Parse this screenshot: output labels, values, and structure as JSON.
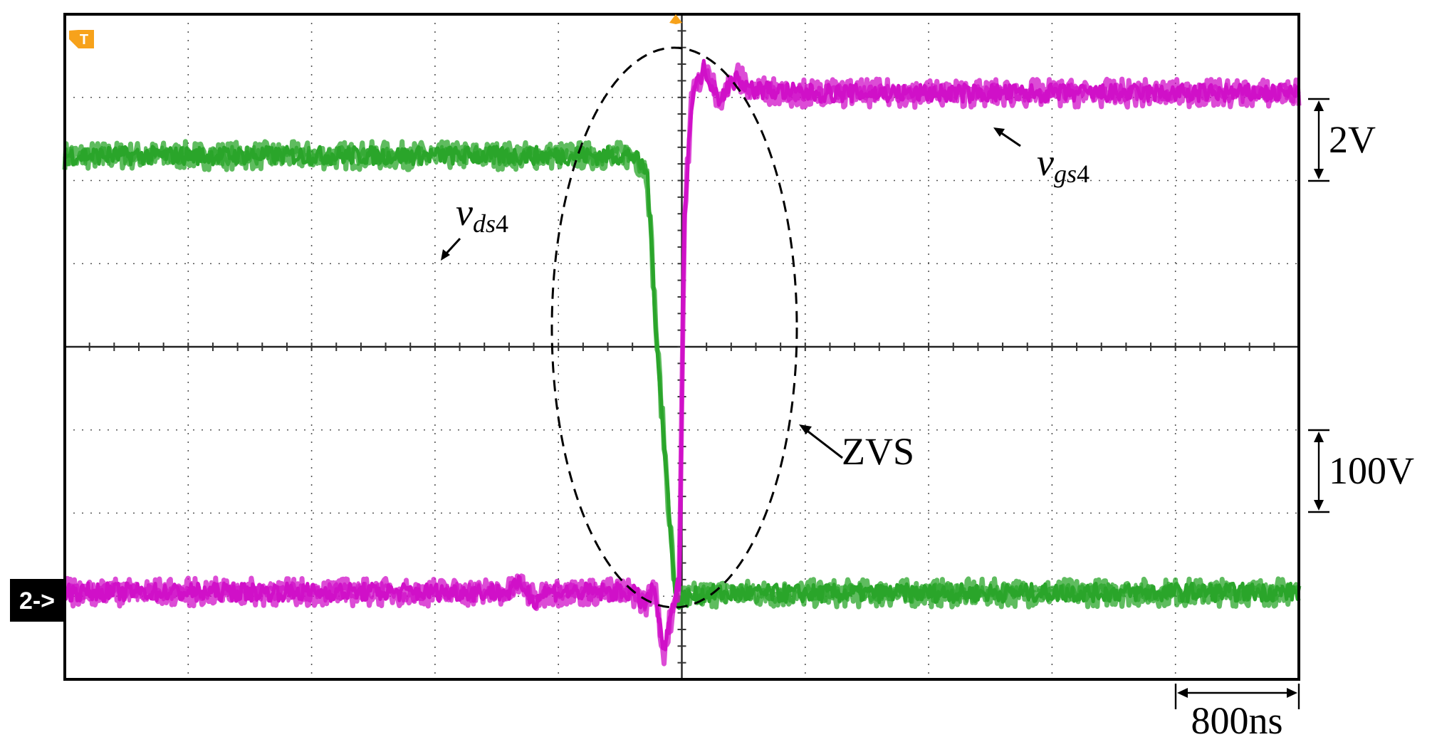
{
  "chart_data": {
    "type": "line",
    "title": "",
    "xlabel": "",
    "ylabel": "",
    "time_per_division": "800ns",
    "grid": {
      "x_divisions": 10,
      "y_divisions": 8,
      "visible": true
    },
    "series": [
      {
        "name": "v_ds4",
        "label_main": "v",
        "label_sub": "ds",
        "label_num": "4",
        "color": "#2aa52a",
        "scale": "100V/div",
        "x_div": [
          0.0,
          4.6,
          4.72,
          4.8,
          4.95,
          5.2,
          10.0
        ],
        "y_div": [
          6.3,
          6.3,
          6.1,
          4.0,
          0.95,
          1.03,
          1.05
        ]
      },
      {
        "name": "v_gs4",
        "label_main": "v",
        "label_sub": "gs",
        "label_num": "4",
        "color": "#d010c8",
        "scale": "2V/div",
        "x_div": [
          0.0,
          3.6,
          3.7,
          3.8,
          3.9,
          4.6,
          4.7,
          4.78,
          4.85,
          4.92,
          4.98,
          5.02,
          5.08,
          5.18,
          5.3,
          5.45,
          5.55,
          6.0,
          10.0
        ],
        "y_div": [
          1.05,
          1.05,
          1.15,
          0.95,
          1.05,
          1.05,
          0.9,
          1.1,
          0.3,
          0.8,
          1.2,
          5.5,
          7.0,
          7.35,
          7.0,
          7.25,
          7.1,
          7.05,
          7.05
        ]
      }
    ],
    "annotations": {
      "zvs": "ZVS",
      "scale_2v": "2V",
      "scale_100v": "100V",
      "time_scale": "800ns",
      "channel_marker": "2->",
      "trigger_marker": "T"
    }
  }
}
